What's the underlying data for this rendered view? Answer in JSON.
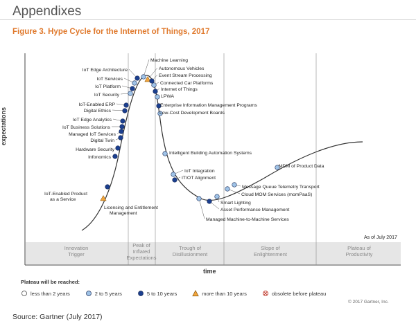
{
  "page": {
    "heading": "Appendixes",
    "figure_title": "Figure 3. Hype Cycle for the Internet of Things, 2017",
    "source": "Source: Gartner (July 2017)",
    "copyright": "© 2017 Gartner, Inc.",
    "as_of": "As of July 2017"
  },
  "colors": {
    "title": "#e07a2e",
    "band": "#e6e6e6",
    "curve": "#333333",
    "lt2": "#ffffff",
    "y2to5": "#9fc3e7",
    "y5to10": "#1b3f8f",
    "gt10": "#f2a53c"
  },
  "legend": {
    "title": "Plateau will be reached:",
    "items": [
      {
        "label": "less than 2 years",
        "marker": "circle-white"
      },
      {
        "label": "2 to 5 years",
        "marker": "circle-light-blue"
      },
      {
        "label": "5 to 10 years",
        "marker": "circle-dark-blue"
      },
      {
        "label": "more than 10 years",
        "marker": "triangle-orange"
      },
      {
        "label": "obsolete before plateau",
        "marker": "circle-cross"
      }
    ]
  },
  "chart_data": {
    "type": "scatter",
    "title": "Hype Cycle for the Internet of Things, 2017",
    "xlabel": "time",
    "ylabel": "expectations",
    "phases": [
      "Innovation\nTrigger",
      "Peak of\nInflated\nExpectations",
      "Trough of\nDisillusionment",
      "Slope of\nEnlightenment",
      "Plateau of\nProductivity"
    ],
    "technologies": [
      {
        "name": "IoT-Enabled Product as a Service",
        "phase": "Innovation Trigger",
        "plateau": "more than 10 years"
      },
      {
        "name": "Licensing and Entitlement Management",
        "phase": "Innovation Trigger",
        "plateau": "5 to 10 years"
      },
      {
        "name": "Infonomics",
        "phase": "Innovation Trigger",
        "plateau": "5 to 10 years"
      },
      {
        "name": "Hardware Security",
        "phase": "Innovation Trigger",
        "plateau": "5 to 10 years"
      },
      {
        "name": "Digital Twin",
        "phase": "Innovation Trigger",
        "plateau": "5 to 10 years"
      },
      {
        "name": "Managed IoT Services",
        "phase": "Innovation Trigger",
        "plateau": "5 to 10 years"
      },
      {
        "name": "IoT Business Solutions",
        "phase": "Innovation Trigger",
        "plateau": "5 to 10 years"
      },
      {
        "name": "IoT Edge Analytics",
        "phase": "Innovation Trigger",
        "plateau": "5 to 10 years"
      },
      {
        "name": "Digital Ethics",
        "phase": "Innovation Trigger",
        "plateau": "5 to 10 years"
      },
      {
        "name": "IoT-Enabled ERP",
        "phase": "Innovation Trigger",
        "plateau": "5 to 10 years"
      },
      {
        "name": "IoT Security",
        "phase": "Peak of Inflated Expectations",
        "plateau": "2 to 5 years"
      },
      {
        "name": "IoT Platform",
        "phase": "Peak of Inflated Expectations",
        "plateau": "5 to 10 years"
      },
      {
        "name": "IoT Services",
        "phase": "Peak of Inflated Expectations",
        "plateau": "2 to 5 years"
      },
      {
        "name": "IoT Edge Architecture",
        "phase": "Peak of Inflated Expectations",
        "plateau": "5 to 10 years"
      },
      {
        "name": "Machine Learning",
        "phase": "Peak of Inflated Expectations",
        "plateau": "2 to 5 years"
      },
      {
        "name": "Autonomous Vehicles",
        "phase": "Peak of Inflated Expectations",
        "plateau": "more than 10 years"
      },
      {
        "name": "Event Stream Processing",
        "phase": "Peak of Inflated Expectations",
        "plateau": "5 to 10 years"
      },
      {
        "name": "Connected Car Platforms",
        "phase": "Peak of Inflated Expectations",
        "plateau": "2 to 5 years"
      },
      {
        "name": "Internet of Things",
        "phase": "Peak of Inflated Expectations",
        "plateau": "5 to 10 years"
      },
      {
        "name": "LPWA",
        "phase": "Peak of Inflated Expectations",
        "plateau": "2 to 5 years"
      },
      {
        "name": "Enterprise Information Management Programs",
        "phase": "Trough of Disillusionment",
        "plateau": "5 to 10 years"
      },
      {
        "name": "Low-Cost Development Boards",
        "phase": "Trough of Disillusionment",
        "plateau": "2 to 5 years"
      },
      {
        "name": "Intelligent Building Automation Systems",
        "phase": "Trough of Disillusionment",
        "plateau": "2 to 5 years"
      },
      {
        "name": "IoT Integration",
        "phase": "Trough of Disillusionment",
        "plateau": "2 to 5 years"
      },
      {
        "name": "IT/OT Alignment",
        "phase": "Trough of Disillusionment",
        "plateau": "5 to 10 years"
      },
      {
        "name": "Managed Machine-to-Machine Services",
        "phase": "Trough of Disillusionment",
        "plateau": "2 to 5 years"
      },
      {
        "name": "Asset Performance Management",
        "phase": "Trough of Disillusionment",
        "plateau": "5 to 10 years"
      },
      {
        "name": "Smart Lighting",
        "phase": "Trough of Disillusionment",
        "plateau": "2 to 5 years"
      },
      {
        "name": "Cloud MOM Services (momPaaS)",
        "phase": "Slope of Enlightenment",
        "plateau": "2 to 5 years"
      },
      {
        "name": "Message Queue Telemetry Transport",
        "phase": "Slope of Enlightenment",
        "plateau": "2 to 5 years"
      },
      {
        "name": "MDM of Product Data",
        "phase": "Slope of Enlightenment",
        "plateau": "2 to 5 years"
      }
    ]
  }
}
